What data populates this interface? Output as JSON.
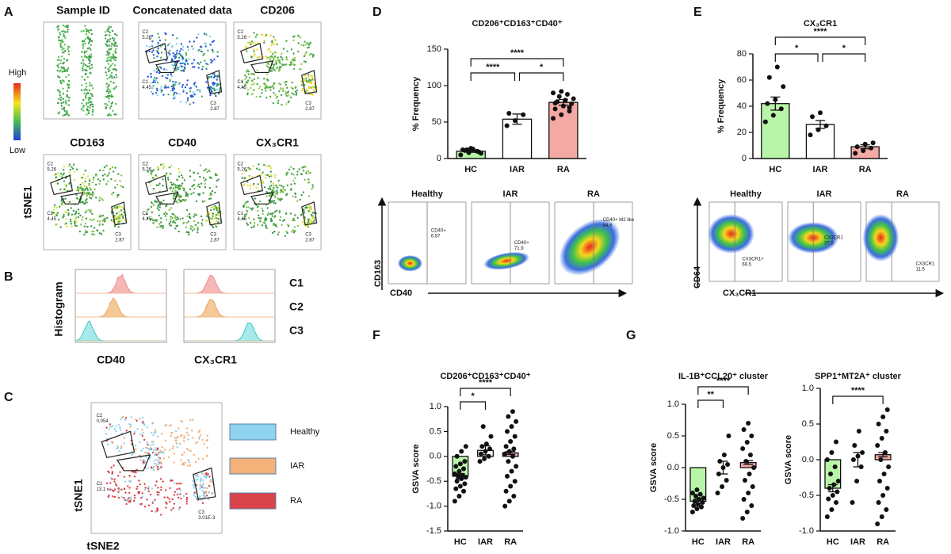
{
  "panel_labels": [
    "A",
    "B",
    "C",
    "D",
    "E",
    "F",
    "G"
  ],
  "panel_a": {
    "titles": [
      "Sample ID",
      "Concatenated data",
      "CD206",
      "CD163",
      "CD40",
      "CX₃CR1"
    ],
    "scale_high": "High",
    "scale_low": "Low",
    "y_axis": "tSNE1",
    "gates": [
      {
        "name": "C2",
        "value": "5.26"
      },
      {
        "name": "C1",
        "value": "4.45"
      },
      {
        "name": "C3",
        "value": "2.87"
      }
    ]
  },
  "panel_b": {
    "y_axis": "Histogram",
    "clusters": [
      "C1",
      "C2",
      "C3"
    ],
    "markers": [
      "CD40",
      "CX₃CR1"
    ]
  },
  "panel_c": {
    "gates": [
      {
        "name": "C2",
        "value": "0.054"
      },
      {
        "name": "C1",
        "value": "13.1"
      },
      {
        "name": "C3",
        "value": "3.01E-3"
      }
    ],
    "legend": [
      "Healthy",
      "IAR",
      "RA"
    ],
    "legend_colors": [
      "#8fd3ee",
      "#f2b27a",
      "#d9434a"
    ],
    "y_axis": "tSNE1",
    "x_axis": "tSNE2"
  },
  "panel_d_flow": {
    "groups": [
      "Healthy",
      "IAR",
      "RA"
    ],
    "gates": [
      {
        "name": "CD40+",
        "value": "6.87"
      },
      {
        "name": "CD40+",
        "value": "71.9"
      },
      {
        "name": "CD40+ M2 like",
        "value": "84.6"
      }
    ],
    "y_axis": "CD163",
    "x_axis": "CD40"
  },
  "panel_e_flow": {
    "groups": [
      "Healthy",
      "IAR",
      "RA"
    ],
    "gates": [
      {
        "name": "CX3CR1+",
        "value": "69.5"
      },
      {
        "name": "CX3CR1",
        "value": "37.5"
      },
      {
        "name": "CX3CR1",
        "value": "11.5"
      }
    ],
    "y_axis": "CD64",
    "x_axis": "CX₃CR1"
  },
  "chart_data": [
    {
      "type": "bar",
      "title": "CD206⁺CD163⁺CD40⁺",
      "ylabel": "% Frequency",
      "categories": [
        "HC",
        "IAR",
        "RA"
      ],
      "values": [
        10,
        54,
        77
      ],
      "errors": [
        1.5,
        7,
        4
      ],
      "colors": [
        "#b9f5a8",
        "#ffffff",
        "#f4a9a5"
      ],
      "points": [
        [
          5,
          8,
          10,
          12,
          14,
          9,
          11,
          13,
          7,
          12
        ],
        [
          45,
          52,
          60,
          62
        ],
        [
          55,
          60,
          65,
          68,
          72,
          75,
          78,
          80,
          82,
          85,
          88,
          90,
          92,
          70,
          76
        ]
      ],
      "ylim": [
        0,
        150
      ],
      "yticks": [
        0,
        50,
        100,
        150
      ],
      "brackets": [
        {
          "label": "****",
          "between": [
            "HC",
            "IAR"
          ]
        },
        {
          "label": "*",
          "between": [
            "IAR",
            "RA"
          ]
        },
        {
          "label": "****",
          "between": [
            "HC",
            "RA"
          ]
        }
      ]
    },
    {
      "type": "bar",
      "title": "CX₃CR1",
      "ylabel": "% Frequency",
      "categories": [
        "HC",
        "IAR",
        "RA"
      ],
      "values": [
        42,
        26,
        9
      ],
      "errors": [
        5,
        3,
        1.5
      ],
      "colors": [
        "#b9f5a8",
        "#ffffff",
        "#f4a9a5"
      ],
      "points": [
        [
          28,
          33,
          38,
          42,
          45,
          55,
          62,
          70
        ],
        [
          18,
          22,
          25,
          32,
          35
        ],
        [
          4,
          6,
          8,
          9,
          11,
          12
        ]
      ],
      "ylim": [
        0,
        80
      ],
      "yticks": [
        0,
        20,
        40,
        60,
        80
      ],
      "brackets": [
        {
          "label": "*",
          "between": [
            "HC",
            "IAR"
          ]
        },
        {
          "label": "*",
          "between": [
            "IAR",
            "RA"
          ]
        },
        {
          "label": "****",
          "between": [
            "HC",
            "RA"
          ]
        }
      ]
    },
    {
      "type": "bar",
      "title": "CD206⁺CD163⁺CD40⁺",
      "ylabel": "GSVA score",
      "categories": [
        "HC",
        "IAR",
        "RA"
      ],
      "values": [
        -0.4,
        0.12,
        0.07
      ],
      "errors": [
        0.05,
        0.09,
        0.03
      ],
      "colors": [
        "#b9f5a8",
        "#ffffff",
        "#f4a9a5"
      ],
      "points": [
        [
          -0.9,
          -0.8,
          -0.7,
          -0.65,
          -0.6,
          -0.55,
          -0.5,
          -0.45,
          -0.42,
          -0.4,
          -0.38,
          -0.35,
          -0.3,
          -0.25,
          -0.2,
          -0.15,
          -0.1,
          0.0,
          0.1,
          0.2
        ],
        [
          -0.1,
          -0.05,
          0.0,
          0.05,
          0.1,
          0.15,
          0.2,
          0.25,
          0.4,
          0.6
        ],
        [
          -1.0,
          -0.9,
          -0.8,
          -0.7,
          -0.6,
          -0.5,
          -0.4,
          -0.3,
          -0.2,
          -0.1,
          0.0,
          0.05,
          0.1,
          0.15,
          0.2,
          0.3,
          0.4,
          0.5,
          0.6,
          0.7,
          0.8,
          0.9
        ]
      ],
      "ylim": [
        -1.5,
        1.0
      ],
      "yticks": [
        -1.5,
        {
          "value": -1,
          "label": "-1.0"
        },
        -0.5,
        {
          "value": 0,
          "label": "0.0"
        },
        0.5,
        {
          "value": 1,
          "label": "1.0"
        }
      ],
      "brackets": [
        {
          "label": "*",
          "between": [
            "HC",
            "IAR"
          ]
        },
        {
          "label": "****",
          "between": [
            "HC",
            "RA"
          ]
        }
      ]
    },
    {
      "type": "bar",
      "title": "IL-1B⁺CCL20⁺ cluster",
      "ylabel": "GSVA score",
      "categories": [
        "HC",
        "IAR",
        "RA"
      ],
      "values": [
        -0.53,
        0.0,
        0.08
      ],
      "errors": [
        0.03,
        0.1,
        0.03
      ],
      "colors": [
        "#b9f5a8",
        "#ffffff",
        "#f4a9a5"
      ],
      "points": [
        [
          -0.7,
          -0.65,
          -0.62,
          -0.6,
          -0.58,
          -0.55,
          -0.53,
          -0.5,
          -0.48,
          -0.45,
          -0.42,
          -0.4,
          -0.35
        ],
        [
          -0.4,
          -0.3,
          -0.2,
          -0.1,
          0.0,
          0.05,
          0.1,
          0.2,
          0.5
        ],
        [
          -0.8,
          -0.7,
          -0.6,
          -0.5,
          -0.4,
          -0.3,
          -0.2,
          -0.1,
          0.0,
          0.1,
          0.2,
          0.3,
          0.4,
          0.5,
          0.6,
          0.7
        ]
      ],
      "ylim": [
        -1,
        1
      ],
      "yticks": [
        {
          "value": -1,
          "label": "-1.0"
        },
        -0.5,
        {
          "value": 0,
          "label": "0.0"
        },
        0.5,
        {
          "value": 1,
          "label": "1.0"
        }
      ],
      "brackets": [
        {
          "label": "**",
          "between": [
            "HC",
            "IAR"
          ]
        },
        {
          "label": "****",
          "between": [
            "HC",
            "RA"
          ]
        }
      ]
    },
    {
      "type": "bar",
      "title": "SPP1⁺MT2A⁺ cluster",
      "ylabel": "GSVA score",
      "categories": [
        "HC",
        "IAR",
        "RA"
      ],
      "values": [
        -0.4,
        0.0,
        0.07
      ],
      "errors": [
        0.05,
        0.1,
        0.03
      ],
      "colors": [
        "#b9f5a8",
        "#ffffff",
        "#f4a9a5"
      ],
      "points": [
        [
          -0.8,
          -0.7,
          -0.6,
          -0.55,
          -0.5,
          -0.45,
          -0.4,
          -0.35,
          -0.3,
          -0.2,
          -0.1,
          0.0,
          0.1,
          0.25
        ],
        [
          -0.6,
          -0.3,
          -0.1,
          0.0,
          0.05,
          0.1,
          0.2,
          0.4
        ],
        [
          -0.9,
          -0.8,
          -0.7,
          -0.6,
          -0.5,
          -0.4,
          -0.3,
          -0.2,
          -0.1,
          0.0,
          0.1,
          0.2,
          0.3,
          0.4,
          0.5,
          0.6,
          0.7
        ]
      ],
      "ylim": [
        -1,
        1
      ],
      "yticks": [
        {
          "value": -1,
          "label": "-1.0"
        },
        -0.5,
        {
          "value": 0,
          "label": "0.0"
        },
        0.5,
        {
          "value": 1,
          "label": "1.0"
        }
      ],
      "brackets": [
        {
          "label": "****",
          "between": [
            "HC",
            "RA"
          ]
        }
      ]
    }
  ]
}
